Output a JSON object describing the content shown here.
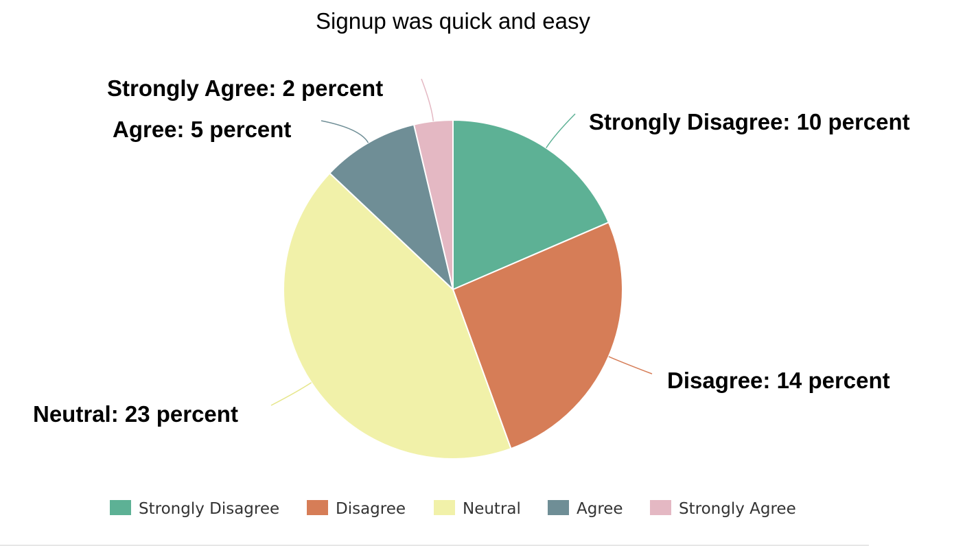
{
  "chart_data": {
    "type": "pie",
    "title": "Signup was quick and easy",
    "categories": [
      "Strongly Disagree",
      "Disagree",
      "Neutral",
      "Agree",
      "Strongly Agree"
    ],
    "values": [
      10,
      14,
      23,
      5,
      2
    ],
    "unit": "percent",
    "labels": [
      "Strongly Disagree: 10 percent",
      "Disagree: 14 percent",
      "Neutral: 23 percent",
      "Agree: 5 percent",
      "Strongly Agree: 2 percent"
    ],
    "colors": [
      "#5db195",
      "#d67d57",
      "#f1f1a9",
      "#6f8e96",
      "#e4b8c3"
    ],
    "legend": {
      "position": "bottom"
    }
  }
}
